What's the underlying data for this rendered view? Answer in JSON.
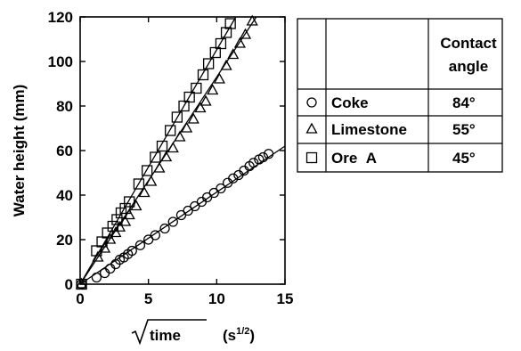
{
  "chart_data": {
    "type": "scatter",
    "xlabel": "time",
    "xunit": "(s",
    "xunit_sup": "1/2",
    "xunit_close": ")",
    "ylabel": "Water height (mm)",
    "xlim": [
      0,
      15
    ],
    "ylim": [
      0,
      120
    ],
    "xticks": [
      "0",
      "5",
      "10",
      "15"
    ],
    "yticks": [
      "0",
      "20",
      "40",
      "60",
      "80",
      "100",
      "120"
    ],
    "grid": false,
    "legend_position": "right",
    "legend_header": [
      "Contact",
      "angle"
    ],
    "series": [
      {
        "name": "Coke",
        "marker": "circle",
        "contact_angle": "84°",
        "fit": {
          "x1": 0,
          "y1": 0,
          "x2": 15,
          "y2": 62
        },
        "points": [
          [
            0.1,
            0
          ],
          [
            1.2,
            3
          ],
          [
            1.8,
            5
          ],
          [
            2.2,
            7
          ],
          [
            2.6,
            9
          ],
          [
            2.9,
            11
          ],
          [
            3.2,
            12
          ],
          [
            3.5,
            13.5
          ],
          [
            3.8,
            15
          ],
          [
            4.4,
            17.5
          ],
          [
            5.0,
            20
          ],
          [
            5.5,
            22
          ],
          [
            6.2,
            25
          ],
          [
            6.8,
            28
          ],
          [
            7.4,
            31
          ],
          [
            7.9,
            33
          ],
          [
            8.4,
            35
          ],
          [
            8.9,
            37
          ],
          [
            9.3,
            39
          ],
          [
            9.8,
            41
          ],
          [
            10.3,
            43
          ],
          [
            10.8,
            45.5
          ],
          [
            11.2,
            47.5
          ],
          [
            11.6,
            49
          ],
          [
            12.0,
            51
          ],
          [
            12.4,
            53
          ],
          [
            12.7,
            54.5
          ],
          [
            13.1,
            56
          ],
          [
            13.4,
            57
          ],
          [
            13.8,
            58.5
          ]
        ]
      },
      {
        "name": "Limestone",
        "marker": "triangle",
        "contact_angle": "55°",
        "fit": {
          "x1": 0,
          "y1": 0,
          "x2": 12.9,
          "y2": 120
        },
        "points": [
          [
            0.1,
            0
          ],
          [
            1.3,
            12
          ],
          [
            1.8,
            16
          ],
          [
            2.2,
            20
          ],
          [
            2.6,
            23
          ],
          [
            2.9,
            25.5
          ],
          [
            3.3,
            28
          ],
          [
            3.6,
            31
          ],
          [
            4.1,
            35
          ],
          [
            4.7,
            41
          ],
          [
            5.2,
            46
          ],
          [
            5.8,
            52
          ],
          [
            6.3,
            57
          ],
          [
            6.8,
            61
          ],
          [
            7.3,
            66
          ],
          [
            7.8,
            70
          ],
          [
            8.3,
            74
          ],
          [
            8.8,
            79
          ],
          [
            9.2,
            82
          ],
          [
            9.7,
            87
          ],
          [
            10.2,
            92
          ],
          [
            10.7,
            98
          ],
          [
            11.2,
            103
          ],
          [
            11.7,
            108
          ],
          [
            12.1,
            112
          ],
          [
            12.6,
            118
          ]
        ]
      },
      {
        "name": "Ore  A",
        "marker": "square",
        "contact_angle": "45°",
        "fit": {
          "x1": 0,
          "y1": 0,
          "x2": 11.4,
          "y2": 120
        },
        "points": [
          [
            0.1,
            0
          ],
          [
            1.2,
            15
          ],
          [
            1.6,
            19
          ],
          [
            2.0,
            23
          ],
          [
            2.4,
            26
          ],
          [
            2.7,
            29
          ],
          [
            3.0,
            32
          ],
          [
            3.3,
            34
          ],
          [
            3.6,
            37
          ],
          [
            4.3,
            45
          ],
          [
            4.9,
            51
          ],
          [
            5.5,
            57
          ],
          [
            6.0,
            62
          ],
          [
            6.6,
            69
          ],
          [
            7.1,
            75
          ],
          [
            7.6,
            80
          ],
          [
            8.0,
            84
          ],
          [
            8.5,
            88
          ],
          [
            9.0,
            94
          ],
          [
            9.4,
            99
          ],
          [
            9.9,
            104
          ],
          [
            10.3,
            108
          ],
          [
            10.7,
            113
          ],
          [
            11.0,
            117
          ]
        ]
      }
    ]
  }
}
